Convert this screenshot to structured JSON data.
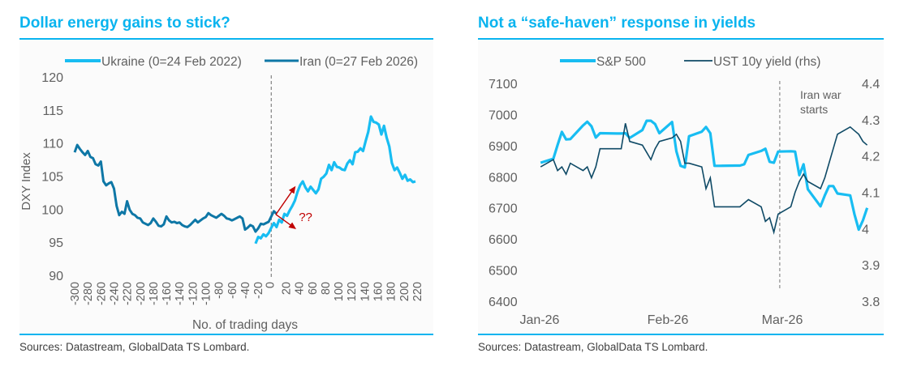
{
  "colors": {
    "accent": "#0ab4ef",
    "ukraine_line": "#18bdf2",
    "iran_line": "#0e77a6",
    "sp500_line": "#18bdf2",
    "ust_line": "#0f4a66",
    "arrow": "#c00000",
    "axis_text": "#606060"
  },
  "sources_text": "Sources: Datastream, GlobalData TS Lombard.",
  "chart_data": [
    {
      "type": "line",
      "title": "Dollar energy gains to stick?",
      "xlabel": "No. of trading days",
      "ylabel": "DXY Index",
      "xlim": [
        -300,
        220
      ],
      "ylim": [
        90,
        120
      ],
      "yticks": [
        90,
        95,
        100,
        105,
        110,
        115,
        120
      ],
      "xticks": [
        -300,
        -280,
        -260,
        -240,
        -220,
        -200,
        -180,
        -160,
        -140,
        -120,
        -100,
        -80,
        -60,
        -40,
        -20,
        0,
        20,
        40,
        60,
        80,
        100,
        120,
        140,
        160,
        180,
        200,
        220
      ],
      "grid": false,
      "legend_position": "top",
      "vertical_marker": {
        "x": 0,
        "style": "dashed"
      },
      "annotation": {
        "text": "??",
        "arrows": [
          {
            "from": [
              7,
              99.2
            ],
            "to": [
              35,
              103.2
            ]
          },
          {
            "from": [
              7,
              99.2
            ],
            "to": [
              35,
              97.2
            ]
          }
        ]
      },
      "series": [
        {
          "name": "Ukraine (0=24 Feb 2022)",
          "x": [
            -24,
            -20,
            -16,
            -12,
            -8,
            -4,
            0,
            4,
            8,
            12,
            16,
            20,
            24,
            28,
            32,
            36,
            40,
            44,
            48,
            52,
            56,
            60,
            64,
            68,
            72,
            76,
            80,
            84,
            88,
            92,
            96,
            100,
            104,
            108,
            112,
            116,
            120,
            124,
            128,
            132,
            136,
            140,
            144,
            148,
            152,
            156,
            160,
            164,
            168,
            172,
            176,
            180,
            184,
            188,
            192,
            196,
            200,
            204,
            208,
            212,
            216,
            220
          ],
          "values": [
            94.8,
            95.8,
            95.6,
            96.2,
            95.9,
            96.4,
            97.2,
            97.9,
            97.3,
            98.4,
            98.0,
            99.3,
            99.0,
            99.8,
            100.5,
            101.3,
            102.6,
            103.6,
            104.2,
            103.3,
            102.7,
            103.4,
            102.9,
            102.4,
            103.0,
            104.6,
            104.9,
            105.4,
            106.7,
            105.9,
            107.1,
            106.4,
            106.3,
            106.0,
            105.9,
            106.9,
            107.4,
            106.8,
            108.6,
            108.7,
            109.2,
            108.8,
            110.3,
            111.7,
            114.0,
            113.2,
            113.1,
            112.8,
            111.3,
            112.6,
            110.8,
            109.5,
            107.0,
            105.9,
            106.3,
            105.5,
            104.6,
            105.2,
            104.3,
            104.5,
            104.1,
            104.2
          ]
        },
        {
          "name": "Iran (0=27 Feb 2026)",
          "x": [
            -300,
            -296,
            -292,
            -288,
            -284,
            -280,
            -276,
            -272,
            -268,
            -264,
            -260,
            -256,
            -252,
            -248,
            -244,
            -240,
            -236,
            -232,
            -228,
            -224,
            -220,
            -216,
            -212,
            -208,
            -204,
            -200,
            -196,
            -192,
            -188,
            -184,
            -180,
            -176,
            -172,
            -168,
            -164,
            -160,
            -156,
            -152,
            -148,
            -144,
            -140,
            -136,
            -132,
            -128,
            -124,
            -120,
            -116,
            -112,
            -108,
            -104,
            -100,
            -96,
            -92,
            -88,
            -84,
            -80,
            -76,
            -72,
            -68,
            -64,
            -60,
            -56,
            -52,
            -48,
            -44,
            -40,
            -36,
            -32,
            -28,
            -24,
            -20,
            -16,
            -12,
            -8,
            -4,
            0,
            4,
            8
          ],
          "values": [
            108.6,
            109.7,
            109.1,
            108.6,
            108.2,
            108.8,
            107.9,
            107.7,
            106.8,
            106.6,
            107.2,
            104.2,
            103.6,
            103.9,
            104.1,
            103.1,
            100.5,
            99.1,
            99.6,
            99.3,
            101.2,
            99.9,
            99.3,
            99.1,
            98.7,
            98.6,
            98.0,
            97.8,
            97.6,
            97.9,
            98.6,
            98.1,
            97.5,
            97.4,
            97.7,
            98.9,
            98.3,
            98.0,
            98.1,
            97.9,
            98.0,
            97.6,
            97.4,
            97.3,
            97.6,
            98.0,
            98.4,
            98.0,
            98.3,
            98.6,
            98.8,
            99.4,
            99.1,
            98.9,
            98.7,
            99.0,
            99.3,
            99.0,
            98.6,
            98.5,
            98.3,
            98.5,
            98.7,
            98.9,
            98.6,
            96.9,
            97.2,
            97.6,
            97.4,
            96.6,
            97.1,
            97.8,
            97.7,
            97.9,
            98.1,
            98.9,
            99.7,
            99.3
          ]
        }
      ]
    },
    {
      "type": "line",
      "title": "Not a “safe-haven” response in yields",
      "xlabel": "",
      "ylabel": "",
      "xticks": [
        "Jan-26",
        "Feb-26",
        "Mar-26"
      ],
      "ylim": [
        6400,
        7100
      ],
      "yticks": [
        6400,
        6500,
        6600,
        6700,
        6800,
        6900,
        7000,
        7100
      ],
      "y2lim": [
        3.8,
        4.4
      ],
      "y2ticks": [
        3.8,
        3.9,
        4,
        4.1,
        4.2,
        4.3,
        4.4
      ],
      "grid": false,
      "legend_position": "top",
      "vertical_marker": {
        "date": "2026-02-27",
        "style": "dashed",
        "label": "Iran war starts"
      },
      "series": [
        {
          "name": "S&P 500",
          "axis": "left",
          "dates": [
            "2026-01-02",
            "2026-01-05",
            "2026-01-06",
            "2026-01-07",
            "2026-01-08",
            "2026-01-09",
            "2026-01-12",
            "2026-01-13",
            "2026-01-14",
            "2026-01-15",
            "2026-01-16",
            "2026-01-20",
            "2026-01-21",
            "2026-01-22",
            "2026-01-23",
            "2026-01-26",
            "2026-01-27",
            "2026-01-28",
            "2026-01-29",
            "2026-01-30",
            "2026-02-02",
            "2026-02-03",
            "2026-02-04",
            "2026-02-05",
            "2026-02-06",
            "2026-02-09",
            "2026-02-10",
            "2026-02-11",
            "2026-02-12",
            "2026-02-13",
            "2026-02-17",
            "2026-02-18",
            "2026-02-19",
            "2026-02-20",
            "2026-02-23",
            "2026-02-24",
            "2026-02-25",
            "2026-02-26",
            "2026-02-27",
            "2026-03-02",
            "2026-03-03",
            "2026-03-04",
            "2026-03-05",
            "2026-03-06",
            "2026-03-09",
            "2026-03-10",
            "2026-03-11",
            "2026-03-12",
            "2026-03-13",
            "2026-03-16",
            "2026-03-17",
            "2026-03-18",
            "2026-03-19",
            "2026-03-20"
          ],
          "values": [
            6845,
            6858,
            6902,
            6944,
            6920,
            6921,
            6965,
            6977,
            6962,
            6926,
            6940,
            6939,
            6939,
            6940,
            6925,
            6950,
            6980,
            6980,
            6969,
            6940,
            6976,
            6882,
            6835,
            6830,
            6930,
            6945,
            6960,
            6940,
            6835,
            6835,
            6836,
            6836,
            6840,
            6870,
            6883,
            6890,
            6848,
            6845,
            6881,
            6882,
            6881,
            6805,
            6840,
            6760,
            6705,
            6740,
            6770,
            6770,
            6746,
            6740,
            6680,
            6630,
            6660,
            6700
          ]
        },
        {
          "name": "UST 10y yield (rhs)",
          "axis": "right",
          "dates": [
            "2026-01-02",
            "2026-01-05",
            "2026-01-06",
            "2026-01-07",
            "2026-01-08",
            "2026-01-09",
            "2026-01-12",
            "2026-01-13",
            "2026-01-14",
            "2026-01-15",
            "2026-01-16",
            "2026-01-20",
            "2026-01-21",
            "2026-01-22",
            "2026-01-23",
            "2026-01-26",
            "2026-01-27",
            "2026-01-28",
            "2026-01-29",
            "2026-01-30",
            "2026-02-02",
            "2026-02-03",
            "2026-02-04",
            "2026-02-05",
            "2026-02-06",
            "2026-02-09",
            "2026-02-10",
            "2026-02-11",
            "2026-02-12",
            "2026-02-13",
            "2026-02-17",
            "2026-02-18",
            "2026-02-19",
            "2026-02-20",
            "2026-02-23",
            "2026-02-24",
            "2026-02-25",
            "2026-02-26",
            "2026-02-27",
            "2026-03-02",
            "2026-03-03",
            "2026-03-04",
            "2026-03-05",
            "2026-03-06",
            "2026-03-09",
            "2026-03-10",
            "2026-03-11",
            "2026-03-12",
            "2026-03-13",
            "2026-03-16",
            "2026-03-17",
            "2026-03-18",
            "2026-03-19",
            "2026-03-20"
          ],
          "values": [
            4.17,
            4.19,
            4.16,
            4.17,
            4.15,
            4.18,
            4.16,
            4.17,
            4.14,
            4.17,
            4.22,
            4.22,
            4.22,
            4.29,
            4.24,
            4.23,
            4.21,
            4.19,
            4.22,
            4.24,
            4.25,
            4.26,
            4.24,
            4.18,
            4.18,
            4.17,
            4.11,
            4.14,
            4.06,
            4.06,
            4.06,
            4.06,
            4.07,
            4.08,
            4.06,
            4.02,
            4.03,
            3.99,
            4.04,
            4.06,
            4.1,
            4.13,
            4.15,
            4.13,
            4.11,
            4.14,
            4.18,
            4.22,
            4.26,
            4.28,
            4.27,
            4.26,
            4.24,
            4.23
          ]
        }
      ]
    }
  ]
}
